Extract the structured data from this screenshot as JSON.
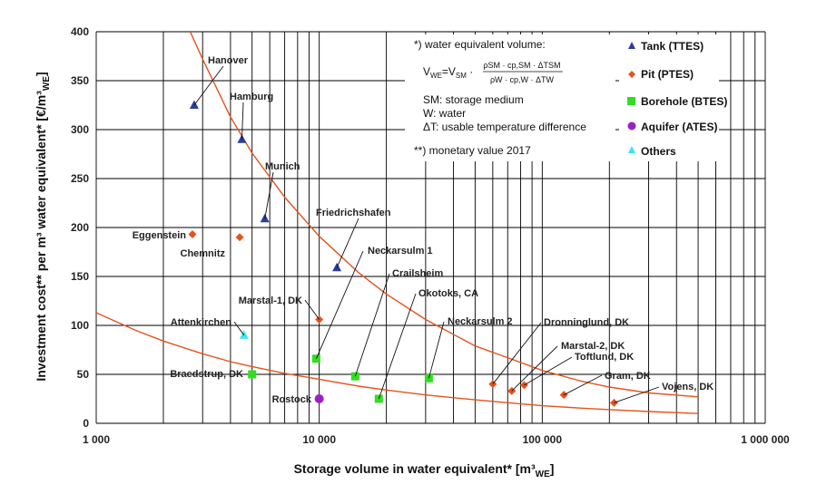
{
  "chart_data": {
    "type": "scatter",
    "x_scale": "log",
    "xlim": [
      1000,
      1000000
    ],
    "ylim": [
      0,
      400
    ],
    "grid": true,
    "xlabel": "Storage volume in water equivalent* [m³WE]",
    "xlabel_main": "Storage volume in water equivalent* [m³",
    "xlabel_sub": "WE",
    "xlabel_end": "]",
    "ylabel": "Investment cost** per m³ water equivalent* [€/m³WE]",
    "ylabel_main": "Investment cost** per m³ water equivalent* [€/m³",
    "ylabel_sub": "WE",
    "ylabel_end": "]",
    "x_ticks": [
      {
        "value": 1000,
        "label": "1 000"
      },
      {
        "value": 10000,
        "label": "10 000"
      },
      {
        "value": 100000,
        "label": "100 000"
      },
      {
        "value": 1000000,
        "label": "1 000 000"
      }
    ],
    "y_ticks": [
      0,
      50,
      100,
      150,
      200,
      250,
      300,
      350,
      400
    ],
    "legend_position": "top-right",
    "series": [
      {
        "name": "Tank (TTES)",
        "marker": "triangle",
        "color": "#2b3d9b",
        "points": [
          {
            "label": "Hanover",
            "x": 2750,
            "y": 325
          },
          {
            "label": "Hamburg",
            "x": 4500,
            "y": 290
          },
          {
            "label": "Munich",
            "x": 5700,
            "y": 209
          },
          {
            "label": "Friedrichshafen",
            "x": 12000,
            "y": 159
          }
        ]
      },
      {
        "name": "Pit (PTES)",
        "marker": "diamond",
        "color": "#e5531d",
        "points": [
          {
            "label": "Eggenstein",
            "x": 2700,
            "y": 193
          },
          {
            "label": "Chemnitz",
            "x": 4400,
            "y": 190
          },
          {
            "label": "Marstal-1, DK",
            "x": 10000,
            "y": 106
          },
          {
            "label": "Dronninglund, DK",
            "x": 60000,
            "y": 40
          },
          {
            "label": "Marstal-2, DK",
            "x": 73000,
            "y": 33
          },
          {
            "label": "Toftlund, DK",
            "x": 83000,
            "y": 39
          },
          {
            "label": "Gram, DK",
            "x": 125000,
            "y": 29
          },
          {
            "label": "Vojens, DK",
            "x": 210000,
            "y": 21
          }
        ]
      },
      {
        "name": "Borehole (BTES)",
        "marker": "square",
        "color": "#33dd22",
        "points": [
          {
            "label": "Braedstrup, DK",
            "x": 5000,
            "y": 50
          },
          {
            "label": "Neckarsulm 1",
            "x": 9700,
            "y": 66
          },
          {
            "label": "Crailsheim",
            "x": 14500,
            "y": 48
          },
          {
            "label": "Okotoks, CA",
            "x": 18500,
            "y": 25
          },
          {
            "label": "Neckarsulm 2",
            "x": 31000,
            "y": 46
          }
        ]
      },
      {
        "name": "Aquifer (ATES)",
        "marker": "circle",
        "color": "#9a22c4",
        "points": [
          {
            "label": "Rostock",
            "x": 10000,
            "y": 25
          }
        ]
      },
      {
        "name": "Others",
        "marker": "triangle",
        "color": "#3ee4f0",
        "points": [
          {
            "label": "Attenkirchen",
            "x": 4600,
            "y": 90
          }
        ]
      }
    ],
    "trend_lines": [
      {
        "color": "#e5531d",
        "x": [
          2300,
          3000,
          4000,
          5000,
          7000,
          10000,
          15000,
          20000,
          30000,
          50000,
          70000,
          100000,
          150000,
          200000,
          300000,
          500000
        ],
        "y": [
          430,
          372,
          313,
          276,
          231,
          191,
          154,
          132,
          106,
          79,
          67,
          54,
          43,
          37,
          31,
          27
        ]
      },
      {
        "color": "#e5531d",
        "x": [
          1000,
          1500,
          2000,
          3000,
          4000,
          5000,
          7000,
          10000,
          15000,
          20000,
          30000,
          50000,
          70000,
          100000,
          150000,
          200000,
          300000,
          500000
        ],
        "y": [
          113,
          95,
          84,
          71,
          63,
          58,
          51,
          45,
          38,
          34,
          29,
          24,
          21,
          18,
          15.5,
          14,
          12,
          10
        ]
      }
    ]
  },
  "notes": {
    "n1": "*) water equivalent volume:",
    "f_lhs": "V",
    "f_lhs_sub": "WE",
    "f_eq": "=V",
    "f_eq_sub": "SM",
    "f_dot": "·",
    "f_num": "ρSM · cp,SM · ΔTSM",
    "f_den": "ρW · cp,W · ΔTW",
    "sm": "SM: storage medium",
    "w": "W:   water",
    "dt": "ΔT:  usable temperature difference",
    "n2": "**) monetary value 2017"
  },
  "colors": {
    "grid": "#000000",
    "trend": "#e5531d"
  }
}
